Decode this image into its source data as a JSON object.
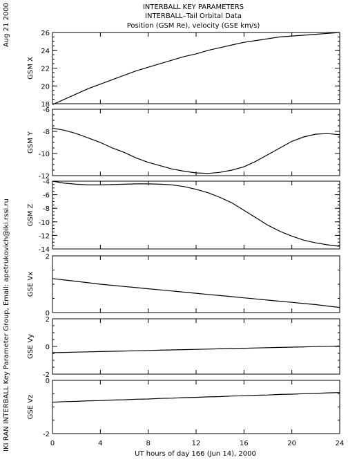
{
  "header": {
    "line1": "INTERBALL KEY PARAMETERS",
    "line2": "INTERBALL–Tail Orbital Data",
    "line3": "Position (GSM Re), velocity (GSE km/s)"
  },
  "side": {
    "date": "Aug 21 2000",
    "credit": "IKI RAN INTERBALL Key Parameter Group, Email: apetrukovich@iki.rssi.ru"
  },
  "chart_data": {
    "type": "line",
    "xlabel": "UT hours of day 166 (Jun 14), 2000",
    "xlim": [
      0,
      24
    ],
    "xticks": [
      0,
      4,
      8,
      12,
      16,
      20,
      24
    ],
    "x": [
      0,
      1,
      2,
      3,
      4,
      5,
      6,
      7,
      8,
      9,
      10,
      11,
      12,
      13,
      14,
      15,
      16,
      17,
      18,
      19,
      20,
      21,
      22,
      23,
      24
    ],
    "panels": [
      {
        "ylabel": "GSM X",
        "ylim": [
          18,
          26
        ],
        "yticks": [
          18,
          20,
          22,
          24,
          26
        ],
        "values": [
          17.9,
          18.5,
          19.1,
          19.7,
          20.2,
          20.7,
          21.2,
          21.7,
          22.1,
          22.5,
          22.9,
          23.3,
          23.6,
          24.0,
          24.3,
          24.6,
          24.9,
          25.1,
          25.3,
          25.5,
          25.6,
          25.7,
          25.8,
          25.9,
          26.0
        ]
      },
      {
        "ylabel": "GSM Y",
        "ylim": [
          -12,
          -6
        ],
        "yticks": [
          -12,
          -10,
          -8,
          -6
        ],
        "values": [
          -7.7,
          -7.9,
          -8.2,
          -8.6,
          -9.0,
          -9.5,
          -9.9,
          -10.4,
          -10.8,
          -11.1,
          -11.4,
          -11.6,
          -11.75,
          -11.8,
          -11.7,
          -11.5,
          -11.2,
          -10.7,
          -10.1,
          -9.5,
          -8.9,
          -8.5,
          -8.25,
          -8.2,
          -8.3
        ]
      },
      {
        "ylabel": "GSM Z",
        "ylim": [
          -14,
          -4
        ],
        "yticks": [
          -14,
          -12,
          -10,
          -8,
          -6,
          -4
        ],
        "values": [
          -4.0,
          -4.3,
          -4.45,
          -4.55,
          -4.55,
          -4.5,
          -4.45,
          -4.4,
          -4.4,
          -4.45,
          -4.55,
          -4.8,
          -5.2,
          -5.7,
          -6.4,
          -7.2,
          -8.3,
          -9.4,
          -10.5,
          -11.4,
          -12.1,
          -12.7,
          -13.1,
          -13.4,
          -13.6
        ]
      },
      {
        "ylabel": "GSE Vx",
        "ylim": [
          0,
          2
        ],
        "yticks": [
          0,
          2
        ],
        "values": [
          1.2,
          1.15,
          1.1,
          1.05,
          1.0,
          0.96,
          0.92,
          0.88,
          0.84,
          0.8,
          0.76,
          0.72,
          0.68,
          0.64,
          0.6,
          0.56,
          0.52,
          0.48,
          0.44,
          0.4,
          0.36,
          0.32,
          0.28,
          0.23,
          0.18
        ]
      },
      {
        "ylabel": "GSE Vy",
        "ylim": [
          -2,
          2
        ],
        "yticks": [
          -2,
          0,
          2
        ],
        "values": [
          -0.45,
          -0.43,
          -0.41,
          -0.39,
          -0.37,
          -0.35,
          -0.33,
          -0.31,
          -0.29,
          -0.27,
          -0.25,
          -0.23,
          -0.21,
          -0.19,
          -0.17,
          -0.15,
          -0.13,
          -0.11,
          -0.09,
          -0.07,
          -0.05,
          -0.03,
          -0.01,
          0.01,
          0.03
        ]
      },
      {
        "ylabel": "GSE Vz",
        "ylim": [
          -2,
          0
        ],
        "yticks": [
          -2,
          0
        ],
        "values": [
          -0.82,
          -0.8,
          -0.79,
          -0.77,
          -0.76,
          -0.74,
          -0.73,
          -0.71,
          -0.7,
          -0.68,
          -0.67,
          -0.65,
          -0.64,
          -0.62,
          -0.61,
          -0.59,
          -0.58,
          -0.56,
          -0.55,
          -0.53,
          -0.52,
          -0.5,
          -0.49,
          -0.47,
          -0.46
        ]
      }
    ]
  }
}
